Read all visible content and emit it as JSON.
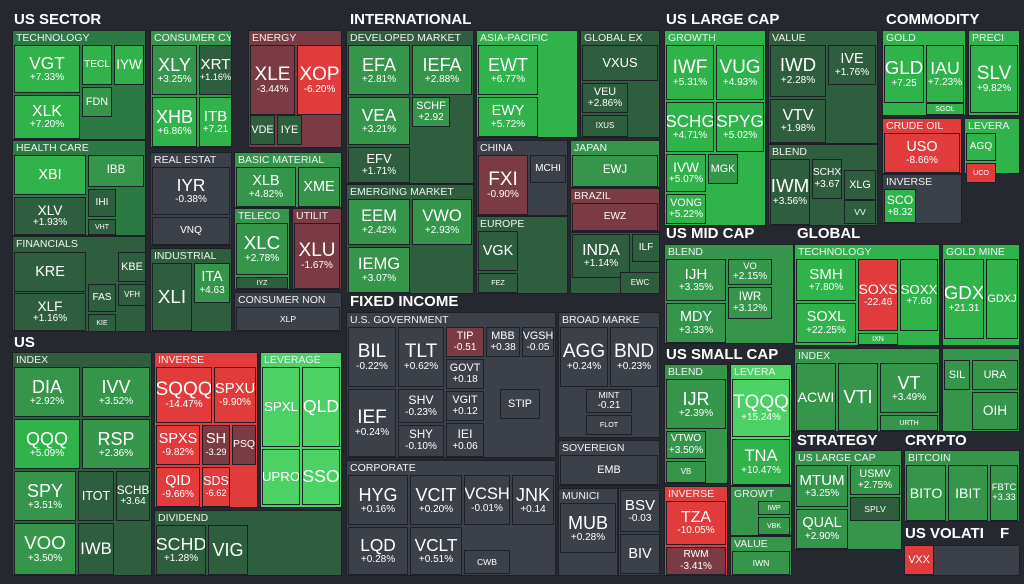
{
  "sections": [
    {
      "title": "US SECTOR",
      "groups": [
        {
          "label": "TECHNOLOGY",
          "tiles": [
            {
              "ticker": "VGT",
              "change": "+7.33%"
            },
            {
              "ticker": "XLK",
              "change": "+7.20%"
            },
            {
              "ticker": "TECL"
            },
            {
              "ticker": "IYW"
            },
            {
              "ticker": "FDN"
            }
          ]
        },
        {
          "label": "HEALTH CARE",
          "tiles": [
            {
              "ticker": "XBI"
            },
            {
              "ticker": "IBB"
            },
            {
              "ticker": "XLV",
              "change": "+1.93%"
            },
            {
              "ticker": "IHI"
            },
            {
              "ticker": "VHT"
            }
          ]
        },
        {
          "label": "FINANCIALS",
          "tiles": [
            {
              "ticker": "KRE"
            },
            {
              "ticker": "XLF",
              "change": "+1.16%"
            },
            {
              "ticker": "KBE"
            },
            {
              "ticker": "FAS"
            },
            {
              "ticker": "VFH"
            },
            {
              "ticker": "KIE"
            }
          ]
        },
        {
          "label": "CONSUMER CY",
          "tiles": [
            {
              "ticker": "XLY",
              "change": "+3.25%"
            },
            {
              "ticker": "XRT",
              "change": "+1.16%"
            },
            {
              "ticker": "XHB",
              "change": "+6.86%"
            },
            {
              "ticker": "ITB",
              "change": "+7.21"
            }
          ]
        },
        {
          "label": "ENERGY",
          "tiles": [
            {
              "ticker": "XLE",
              "change": "-3.44%"
            },
            {
              "ticker": "XOP",
              "change": "-6.20%"
            },
            {
              "ticker": "VDE"
            },
            {
              "ticker": "IYE"
            }
          ]
        },
        {
          "label": "REAL ESTAT",
          "tiles": [
            {
              "ticker": "IYR",
              "change": "-0.38%"
            },
            {
              "ticker": "VNQ"
            }
          ]
        },
        {
          "label": "BASIC MATERIAL",
          "tiles": [
            {
              "ticker": "XLB",
              "change": "+4.82%"
            },
            {
              "ticker": "XME"
            }
          ]
        },
        {
          "label": "TELECO",
          "tiles": [
            {
              "ticker": "XLC",
              "change": "+2.78%"
            },
            {
              "ticker": "IYZ"
            }
          ]
        },
        {
          "label": "UTILIT",
          "tiles": [
            {
              "ticker": "XLU",
              "change": "-1.67%"
            }
          ]
        },
        {
          "label": "INDUSTRIAL",
          "tiles": [
            {
              "ticker": "XLI"
            },
            {
              "ticker": "ITA",
              "change": "+4.63"
            }
          ]
        },
        {
          "label": "CONSUMER NON",
          "tiles": [
            {
              "ticker": "XLP"
            }
          ]
        }
      ]
    },
    {
      "title": "INTERNATIONAL",
      "groups": [
        {
          "label": "DEVELOPED MARKET",
          "tiles": [
            {
              "ticker": "EFA",
              "change": "+2.81%"
            },
            {
              "ticker": "IEFA",
              "change": "+2.88%"
            },
            {
              "ticker": "VEA",
              "change": "+3.21%"
            },
            {
              "ticker": "SCHF",
              "change": "+2.92"
            },
            {
              "ticker": "EFV",
              "change": "+1.71%"
            }
          ]
        },
        {
          "label": "ASIA-PACIFIC",
          "tiles": [
            {
              "ticker": "EWT",
              "change": "+6.77%"
            },
            {
              "ticker": "EWY",
              "change": "+5.72%"
            }
          ]
        },
        {
          "label": "GLOBAL EX",
          "tiles": [
            {
              "ticker": "VXUS"
            },
            {
              "ticker": "VEU",
              "change": "+2.86%"
            },
            {
              "ticker": "IXUS"
            }
          ]
        },
        {
          "label": "CHINA",
          "tiles": [
            {
              "ticker": "FXI",
              "change": "-0.90%"
            },
            {
              "ticker": "MCHI"
            }
          ]
        },
        {
          "label": "JAPAN",
          "tiles": [
            {
              "ticker": "EWJ"
            }
          ]
        },
        {
          "label": "BRAZIL",
          "tiles": [
            {
              "ticker": "EWZ"
            }
          ]
        },
        {
          "label": "EMERGING MARKET",
          "tiles": [
            {
              "ticker": "EEM",
              "change": "+2.42%"
            },
            {
              "ticker": "VWO",
              "change": "+2.93%"
            },
            {
              "ticker": "IEMG",
              "change": "+3.07%"
            }
          ]
        },
        {
          "label": "EUROPE",
          "tiles": [
            {
              "ticker": "VGK"
            },
            {
              "ticker": "FEZ"
            }
          ]
        },
        {
          "tiles": [
            {
              "ticker": "INDA",
              "change": "+1.14%"
            },
            {
              "ticker": "ILF"
            },
            {
              "ticker": "EWC"
            }
          ]
        }
      ]
    },
    {
      "title": "US LARGE CAP",
      "groups": [
        {
          "label": "GROWTH",
          "tiles": [
            {
              "ticker": "IWF",
              "change": "+5.31%"
            },
            {
              "ticker": "VUG",
              "change": "+4.93%"
            },
            {
              "ticker": "SCHG",
              "change": "+4.71%"
            },
            {
              "ticker": "SPYG",
              "change": "+5.02%"
            },
            {
              "ticker": "IVW",
              "change": "+5.07%"
            },
            {
              "ticker": "MGK"
            },
            {
              "ticker": "VONG",
              "change": "+5.22%"
            }
          ]
        },
        {
          "label": "VALUE",
          "tiles": [
            {
              "ticker": "IWD",
              "change": "+2.28%"
            },
            {
              "ticker": "IVE",
              "change": "+1.76%"
            },
            {
              "ticker": "VTV",
              "change": "+1.98%"
            }
          ]
        },
        {
          "label": "BLEND",
          "tiles": [
            {
              "ticker": "IWM",
              "change": "+3.56%"
            },
            {
              "ticker": "SCHX",
              "change": "+3.67"
            },
            {
              "ticker": "XLG"
            },
            {
              "ticker": "VV"
            }
          ]
        }
      ]
    },
    {
      "title": "COMMODITY",
      "groups": [
        {
          "label": "GOLD",
          "tiles": [
            {
              "ticker": "GLD",
              "change": "+7.25"
            },
            {
              "ticker": "IAU",
              "change": "+7.23%"
            },
            {
              "ticker": "SGOL"
            }
          ]
        },
        {
          "label": "PRECI",
          "tiles": [
            {
              "ticker": "SLV",
              "change": "+9.82%"
            }
          ]
        },
        {
          "label": "CRUDE OIL",
          "tiles": [
            {
              "ticker": "USO",
              "change": "-8.66%"
            }
          ]
        },
        {
          "label": "LEVERA",
          "tiles": [
            {
              "ticker": "AGQ"
            },
            {
              "ticker": "UCO"
            }
          ]
        },
        {
          "label": "INVERSE",
          "tiles": [
            {
              "ticker": "SCO",
              "change": "+8.32"
            }
          ]
        }
      ]
    },
    {
      "title": "US MID CAP",
      "groups": [
        {
          "label": "BLEND",
          "tiles": [
            {
              "ticker": "IJH",
              "change": "+3.35%"
            },
            {
              "ticker": "MDY",
              "change": "+3.33%"
            },
            {
              "ticker": "VO",
              "change": "+2.15%"
            },
            {
              "ticker": "IWR",
              "change": "+3.12%"
            }
          ]
        }
      ]
    },
    {
      "title": "GLOBAL",
      "groups": [
        {
          "label": "TECHNOLOGY",
          "tiles": [
            {
              "ticker": "SMH",
              "change": "+7.80%"
            },
            {
              "ticker": "SOXS",
              "change": "-22.46"
            },
            {
              "ticker": "SOXX",
              "change": "+7.60"
            },
            {
              "ticker": "SOXL",
              "change": "+22.25%"
            },
            {
              "ticker": "IXN"
            }
          ]
        },
        {
          "label": "GOLD MINE",
          "tiles": [
            {
              "ticker": "GDX",
              "change": "+21.31"
            },
            {
              "ticker": "GDXJ"
            }
          ]
        },
        {
          "label": "INDEX",
          "tiles": [
            {
              "ticker": "ACWI"
            },
            {
              "ticker": "VTI"
            },
            {
              "ticker": "VT",
              "change": "+3.49%"
            },
            {
              "ticker": "URTH"
            }
          ]
        },
        {
          "tiles": [
            {
              "ticker": "SIL"
            },
            {
              "ticker": "URA"
            },
            {
              "ticker": "OIH"
            }
          ]
        }
      ]
    },
    {
      "title": "US SMALL CAP",
      "groups": [
        {
          "label": "BLEND",
          "tiles": [
            {
              "ticker": "IJR",
              "change": "+2.39%"
            },
            {
              "ticker": "VTWO",
              "change": "+3.50%"
            },
            {
              "ticker": "VB"
            }
          ]
        },
        {
          "label": "LEVERA",
          "tiles": [
            {
              "ticker": "TQQQ",
              "change": "+15.24%"
            },
            {
              "ticker": "TNA",
              "change": "+10.47%"
            }
          ]
        },
        {
          "label": "INVERSE",
          "tiles": [
            {
              "ticker": "TZA",
              "change": "-10.05%"
            },
            {
              "ticker": "RWM",
              "change": "-3.41%"
            }
          ]
        },
        {
          "label": "GROWT",
          "tiles": [
            {
              "ticker": "IWP"
            },
            {
              "ticker": "VBK"
            }
          ]
        },
        {
          "label": "VALUE",
          "tiles": [
            {
              "ticker": "IWN"
            }
          ]
        }
      ]
    },
    {
      "title": "STRATEGY",
      "groups": [
        {
          "label": "US LARGE CAP",
          "tiles": [
            {
              "ticker": "MTUM",
              "change": "+3.25%"
            },
            {
              "ticker": "USMV",
              "change": "+2.75%"
            },
            {
              "ticker": "SPLV"
            },
            {
              "ticker": "QUAL",
              "change": "+2.90%"
            }
          ]
        }
      ]
    },
    {
      "title": "CRYPTO",
      "groups": [
        {
          "label": "BITCOIN",
          "tiles": [
            {
              "ticker": "BITO"
            },
            {
              "ticker": "IBIT"
            },
            {
              "ticker": "FBTC",
              "change": "+3.33"
            }
          ]
        }
      ]
    },
    {
      "title": "US VOLATI",
      "groups": [
        {
          "tiles": [
            {
              "ticker": "VXX"
            }
          ]
        }
      ]
    },
    {
      "title": "F",
      "groups": []
    },
    {
      "title": "US",
      "groups": [
        {
          "label": "INDEX",
          "tiles": [
            {
              "ticker": "DIA",
              "change": "+2.92%"
            },
            {
              "ticker": "IVV",
              "change": "+3.52%"
            },
            {
              "ticker": "QQQ",
              "change": "+5.09%"
            },
            {
              "ticker": "RSP",
              "change": "+2.36%"
            },
            {
              "ticker": "SPY",
              "change": "+3.51%"
            },
            {
              "ticker": "ITOT"
            },
            {
              "ticker": "SCHB",
              "change": "+3.64"
            },
            {
              "ticker": "VOO",
              "change": "+3.50%"
            },
            {
              "ticker": "IWB"
            }
          ]
        },
        {
          "label": "INVERSE",
          "tiles": [
            {
              "ticker": "SQQQ",
              "change": "-14.47%"
            },
            {
              "ticker": "SPXU",
              "change": "-9.90%"
            },
            {
              "ticker": "SPXS",
              "change": "-9.82%"
            },
            {
              "ticker": "SH",
              "change": "-3.29"
            },
            {
              "ticker": "PSQ"
            },
            {
              "ticker": "QID",
              "change": "-9.66%"
            },
            {
              "ticker": "SDS",
              "change": "-6.62"
            }
          ]
        },
        {
          "label": "LEVERAGE",
          "tiles": [
            {
              "ticker": "SPXL"
            },
            {
              "ticker": "QLD"
            },
            {
              "ticker": "UPRO"
            },
            {
              "ticker": "SSO"
            }
          ]
        },
        {
          "label": "DIVIDEND",
          "tiles": [
            {
              "ticker": "SCHD",
              "change": "+1.28%"
            },
            {
              "ticker": "VIG"
            }
          ]
        }
      ]
    },
    {
      "title": "FIXED INCOME",
      "groups": [
        {
          "label": "U.S. GOVERNMENT",
          "tiles": [
            {
              "ticker": "BIL",
              "change": "-0.22%"
            },
            {
              "ticker": "TLT",
              "change": "+0.62%"
            },
            {
              "ticker": "TIP",
              "change": "-0.51"
            },
            {
              "ticker": "MBB",
              "change": "+0.38"
            },
            {
              "ticker": "VGSH",
              "change": "-0.05"
            },
            {
              "ticker": "GOVT",
              "change": "+0.18"
            },
            {
              "ticker": "SHV",
              "change": "-0.23%"
            },
            {
              "ticker": "VGIT",
              "change": "+0.12"
            },
            {
              "ticker": "STIP"
            },
            {
              "ticker": "IEF",
              "change": "+0.24%"
            },
            {
              "ticker": "SHY",
              "change": "-0.10%"
            },
            {
              "ticker": "IEI",
              "change": "+0.06"
            }
          ]
        },
        {
          "label": "BROAD MARKE",
          "tiles": [
            {
              "ticker": "AGG",
              "change": "+0.24%"
            },
            {
              "ticker": "BND",
              "change": "+0.23%"
            },
            {
              "ticker": "MINT",
              "change": "-0.21"
            },
            {
              "ticker": "FLOT"
            }
          ]
        },
        {
          "label": "SOVEREIGN",
          "tiles": [
            {
              "ticker": "EMB"
            }
          ]
        },
        {
          "label": "CORPORATE",
          "tiles": [
            {
              "ticker": "HYG",
              "change": "+0.16%"
            },
            {
              "ticker": "VCIT",
              "change": "+0.20%"
            },
            {
              "ticker": "VCSH",
              "change": "-0.01%"
            },
            {
              "ticker": "JNK",
              "change": "+0.14"
            },
            {
              "ticker": "LQD",
              "change": "+0.28%"
            },
            {
              "ticker": "VCLT",
              "change": "+0.51%"
            },
            {
              "ticker": "CWB"
            }
          ]
        },
        {
          "label": "MUNICI",
          "tiles": [
            {
              "ticker": "MUB",
              "change": "+0.28%"
            }
          ]
        },
        {
          "tiles": [
            {
              "ticker": "BSV",
              "change": "-0.03"
            },
            {
              "ticker": "BIV"
            }
          ]
        }
      ]
    }
  ]
}
